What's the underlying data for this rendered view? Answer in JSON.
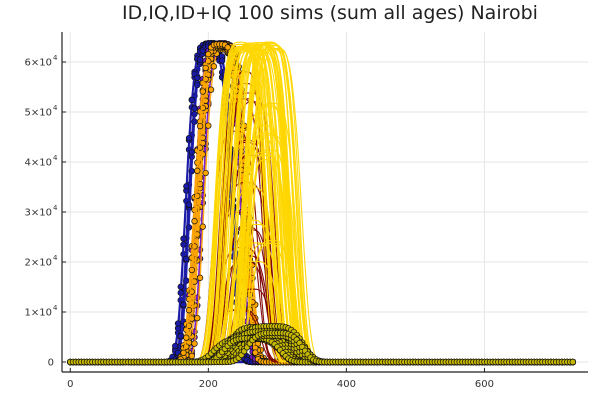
{
  "chart_data": {
    "type": "line",
    "title": "ID,IQ,ID+IQ 100 sims (sum all ages) Nairobi",
    "xlabel": "",
    "ylabel": "",
    "xlim": [
      -12,
      750
    ],
    "ylim": [
      -2000,
      66000
    ],
    "xticks": [
      {
        "value": 0,
        "label": "0"
      },
      {
        "value": 200,
        "label": "200"
      },
      {
        "value": 400,
        "label": "400"
      },
      {
        "value": 600,
        "label": "600"
      }
    ],
    "yticks": [
      {
        "value": 0,
        "mantissa": "0",
        "exponent": ""
      },
      {
        "value": 10000,
        "mantissa": "1×10",
        "exponent": "4"
      },
      {
        "value": 20000,
        "mantissa": "2×10",
        "exponent": "4"
      },
      {
        "value": 30000,
        "mantissa": "3×10",
        "exponent": "4"
      },
      {
        "value": 40000,
        "mantissa": "4×10",
        "exponent": "4"
      },
      {
        "value": 50000,
        "mantissa": "5×10",
        "exponent": "4"
      },
      {
        "value": 60000,
        "mantissa": "6×10",
        "exponent": "4"
      }
    ],
    "grid": true,
    "legend": "none",
    "x_end": 730,
    "marker_step": 4,
    "groups": [
      {
        "color": "#1a1aa8",
        "marker": true,
        "count": 8,
        "peak_min": 62500,
        "peak_max": 63800,
        "center_min": 198,
        "center_max": 206,
        "width_min": 20,
        "width_max": 22
      },
      {
        "color": "#7a1fc9",
        "marker": true,
        "count": 10,
        "peak_min": 62500,
        "peak_max": 63800,
        "center_min": 212,
        "center_max": 228,
        "width_min": 20,
        "width_max": 23
      },
      {
        "color": "#ffa500",
        "marker": true,
        "count": 10,
        "peak_min": 62500,
        "peak_max": 63600,
        "center_min": 212,
        "center_max": 232,
        "width_min": 21,
        "width_max": 24
      },
      {
        "color": "#800000",
        "marker": false,
        "count": 20,
        "peak_min": 10000,
        "peak_max": 63000,
        "center_min": 235,
        "center_max": 265,
        "width_min": 18,
        "width_max": 24
      },
      {
        "color": "#ffd700",
        "marker": false,
        "count": 45,
        "peak_min": 62000,
        "peak_max": 64000,
        "center_min": 245,
        "center_max": 300,
        "width_min": 20,
        "width_max": 26
      },
      {
        "color": "#ffd700",
        "marker": false,
        "count": 20,
        "peak_min": 20000,
        "peak_max": 52000,
        "center_min": 262,
        "center_max": 300,
        "width_min": 18,
        "width_max": 24
      },
      {
        "color": "#c7b800",
        "marker": true,
        "count": 12,
        "peak_min": 4500,
        "peak_max": 7200,
        "center_min": 255,
        "center_max": 300,
        "width_min": 26,
        "width_max": 32
      }
    ],
    "colors": {
      "marker_edge": "#111111",
      "baseline": "#1a1aa8",
      "grid": "#e6e6e6",
      "axis": "#222222"
    }
  }
}
